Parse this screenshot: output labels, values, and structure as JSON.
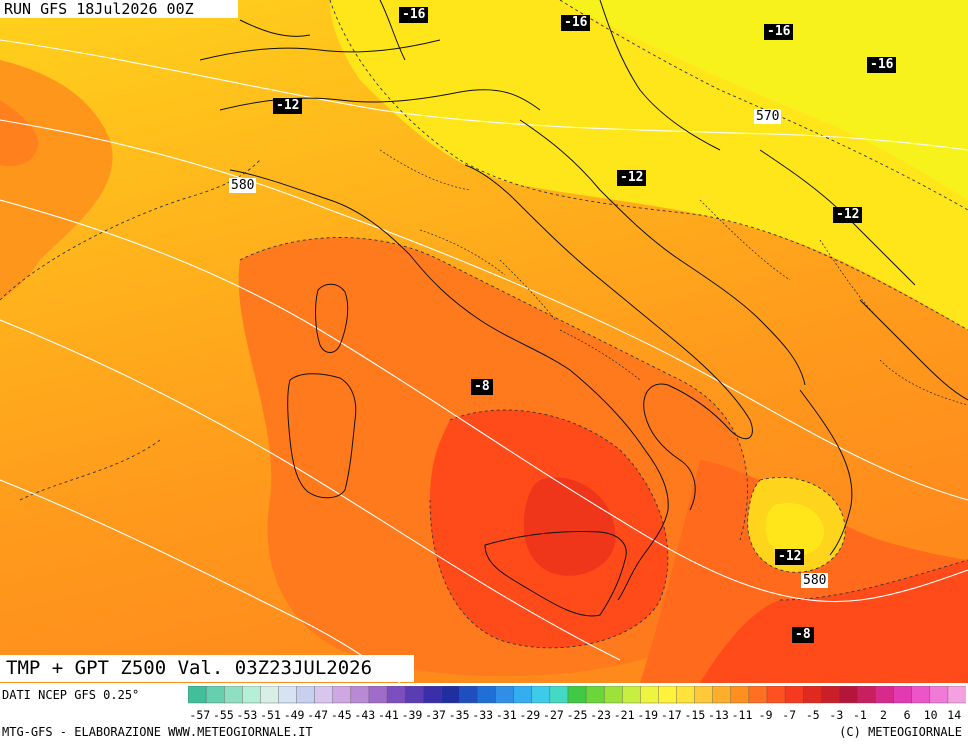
{
  "header": {
    "run_title": "RUN GFS 18Jul2026 00Z"
  },
  "product": {
    "label": "TMP + GPT Z500 Val. 03Z23JUL2026"
  },
  "source": {
    "label": "DATI NCEP GFS 0.25°"
  },
  "credits": {
    "left": "MTG-GFS - ELABORAZIONE WWW.METEOGIORNALE.IT",
    "right": "(C) METEOGIORNALE"
  },
  "temp_labels": [
    "-16",
    "-16",
    "-16",
    "-16",
    "-12",
    "-12",
    "-12",
    "-8",
    "-12",
    "-8"
  ],
  "geopotential_labels": [
    "570",
    "580",
    "580"
  ],
  "color_scale": {
    "ticks": [
      "-57",
      "-55",
      "-53",
      "-51",
      "-49",
      "-47",
      "-45",
      "-43",
      "-41",
      "-39",
      "-37",
      "-35",
      "-33",
      "-31",
      "-29",
      "-27",
      "-25",
      "-23",
      "-21",
      "-19",
      "-17",
      "-15",
      "-13",
      "-11",
      "-9",
      "-7",
      "-5",
      "-3",
      "-1",
      "2",
      "6",
      "10",
      "14"
    ],
    "colors": [
      "#3fbf9a",
      "#66cfae",
      "#8fdfc3",
      "#b6efd8",
      "#d7efe6",
      "#d6e3f2",
      "#c7d0ee",
      "#d9c6ee",
      "#cfa8e3",
      "#b88ad6",
      "#a06bc9",
      "#7c4fbf",
      "#5a3db3",
      "#3a2fa8",
      "#1f2fa0",
      "#1f4fbf",
      "#1f6fd6",
      "#2f8fe6",
      "#33aef0",
      "#3ccbe8",
      "#44d9c2",
      "#3fc944",
      "#6ad63a",
      "#9be33a",
      "#c8ee3f",
      "#eef53f",
      "#fff23a",
      "#ffe23a",
      "#ffc93a",
      "#ffae2a",
      "#ff9020",
      "#ff7020",
      "#ff5020",
      "#f53a1f",
      "#e02a1f",
      "#c81f28",
      "#b3163a",
      "#c8205f",
      "#d72a8a",
      "#e23ab0",
      "#ec55c8",
      "#f07ad6",
      "#f5a0e0"
    ],
    "edge_left": "-57",
    "edge_right": "14"
  }
}
